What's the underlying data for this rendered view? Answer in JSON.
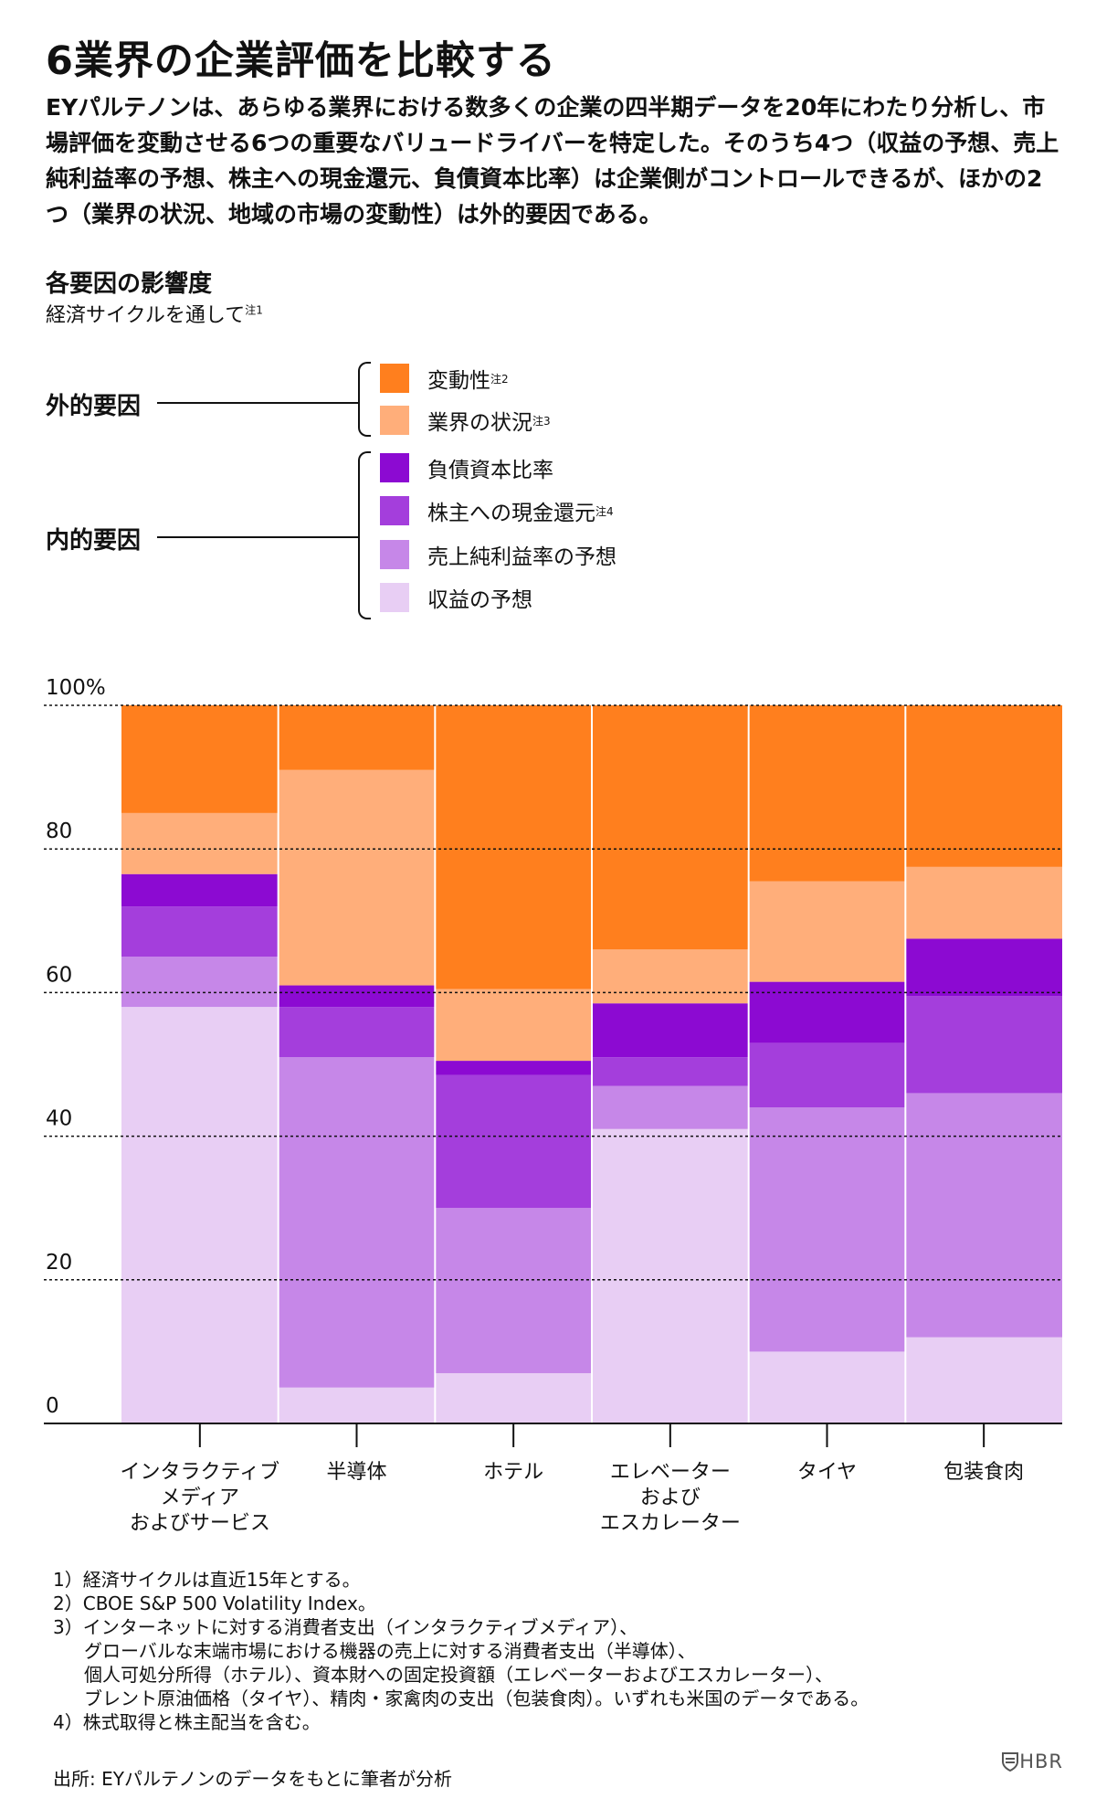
{
  "title": "6業界の企業評価を比較する",
  "intro": "EYパルテノンは、あらゆる業界における数多くの企業の四半期データを20年にわたり分析し、市場評価を変動させる6つの重要なバリュードライバーを特定した。そのうち4つ（収益の予想、売上純利益率の予想、株主への現金還元、負債資本比率）は企業側がコントロールできるが、ほかの2つ（業界の状況、地域の市場の変動性）は外的要因である。",
  "section": {
    "title": "各要因の影響度",
    "subtitle": "経済サイクルを通して",
    "subtitle_note": "注1"
  },
  "legend": {
    "external_label": "外的要因",
    "internal_label": "内的要因",
    "items": [
      {
        "label": "変動性",
        "note": "注2",
        "color": "#FF7F1E"
      },
      {
        "label": "業界の状況",
        "note": "注3",
        "color": "#FFAE7A"
      },
      {
        "label": "負債資本比率",
        "note": "",
        "color": "#8C0AD2"
      },
      {
        "label": "株主への現金還元",
        "note": "注4",
        "color": "#A43EDC"
      },
      {
        "label": "売上純利益率の予想",
        "note": "",
        "color": "#C687E8"
      },
      {
        "label": "収益の予想",
        "note": "",
        "color": "#E8CEF4"
      }
    ]
  },
  "chart_data": {
    "type": "bar",
    "stacked": true,
    "ylim": [
      0,
      100
    ],
    "yticks": [
      "0",
      "20",
      "40",
      "60",
      "80",
      "100%"
    ],
    "grid": true,
    "categories": [
      [
        "インタラクティブ",
        "メディア",
        "およびサービス"
      ],
      [
        "半導体"
      ],
      [
        "ホテル"
      ],
      [
        "エレベーター",
        "および",
        "エスカレーター"
      ],
      [
        "タイヤ"
      ],
      [
        "包装食肉"
      ]
    ],
    "series": [
      {
        "name": "収益の予想",
        "color": "#E8CEF4",
        "values": [
          58,
          5,
          7,
          41,
          10,
          12
        ]
      },
      {
        "name": "売上純利益率の予想",
        "color": "#C687E8",
        "values": [
          7,
          46,
          23,
          6,
          34,
          34
        ]
      },
      {
        "name": "株主への現金還元",
        "color": "#A43EDC",
        "values": [
          7,
          7,
          18.5,
          4,
          9,
          13.5
        ]
      },
      {
        "name": "負債資本比率",
        "color": "#8C0AD2",
        "values": [
          4.5,
          3,
          2,
          7.5,
          8.5,
          8
        ]
      },
      {
        "name": "業界の状況",
        "color": "#FFAE7A",
        "values": [
          8.5,
          30,
          10,
          7.5,
          14,
          10
        ]
      },
      {
        "name": "変動性",
        "color": "#FF7F1E",
        "values": [
          15,
          9,
          39.5,
          34,
          24.5,
          22.5
        ]
      }
    ]
  },
  "notes": [
    "1）経済サイクルは直近15年とする。",
    "2）CBOE S&P 500 Volatility Index。",
    "3）インターネットに対する消費者支出（インタラクティブメディア）、",
    "グローバルな末端市場における機器の売上に対する消費者支出（半導体）、",
    "個人可処分所得（ホテル）、資本財への固定投資額（エレベーターおよびエスカレーター）、",
    "ブレント原油価格（タイヤ）、精肉・家禽肉の支出（包装食肉）。いずれも米国のデータである。",
    "4）株式取得と株主配当を含む。"
  ],
  "source": "出所: EYパルテノンのデータをもとに筆者が分析",
  "logo": {
    "text": "HBR",
    "icon": "hbr-shield-icon"
  }
}
